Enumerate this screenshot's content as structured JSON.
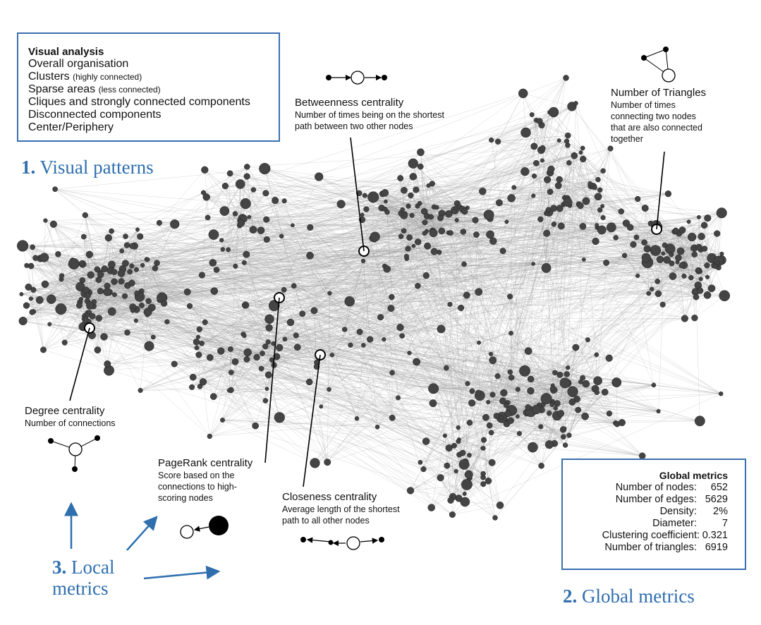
{
  "visual_analysis": {
    "title": "Visual analysis",
    "items": [
      {
        "main": "Overall organisation",
        "note": ""
      },
      {
        "main": "Clusters",
        "note": "(highly connected)"
      },
      {
        "main": "Sparse areas",
        "note": "(less connected)"
      },
      {
        "main": "Cliques and strongly connected components",
        "note": ""
      },
      {
        "main": "Disconnected components",
        "note": ""
      },
      {
        "main": "Center/Periphery",
        "note": ""
      }
    ]
  },
  "headings": {
    "visual_patterns": {
      "num": "1.",
      "label": "Visual patterns"
    },
    "global_metrics": {
      "num": "2.",
      "label": "Global metrics"
    },
    "local_metrics": {
      "num": "3.",
      "line1": "Local",
      "line2": "metrics"
    }
  },
  "annotations": {
    "betweenness": {
      "title": "Betweenness centrality",
      "line1": "Number of times being on the shortest",
      "line2": "path between two other nodes"
    },
    "triangles": {
      "title": "Number of Triangles",
      "line1": "Number of times",
      "line2": "connecting two nodes",
      "line3": "that are also connected",
      "line4": "together"
    },
    "degree": {
      "title": "Degree centrality",
      "line1": "Number of connections"
    },
    "pagerank": {
      "title": "PageRank centrality",
      "line1": "Score based on the",
      "line2": "connections to high-",
      "line3": "scoring nodes"
    },
    "closeness": {
      "title": "Closeness centrality",
      "line1": "Average length of the shortest",
      "line2": "path to all other nodes"
    }
  },
  "global_metrics": {
    "title": "Global metrics",
    "rows": [
      {
        "label": "Number of nodes:",
        "value": "652"
      },
      {
        "label": "Number of edges:",
        "value": "5629"
      },
      {
        "label": "Density:",
        "value": "2%"
      },
      {
        "label": "Diameter:",
        "value": "7"
      },
      {
        "label": "Clustering coefficient:",
        "value": "0.321"
      },
      {
        "label": "Number of triangles:",
        "value": "6919"
      }
    ]
  },
  "colors": {
    "accent_blue": "#2f6fae",
    "node_fill": "#444444",
    "edge": "#9a9a9a"
  }
}
